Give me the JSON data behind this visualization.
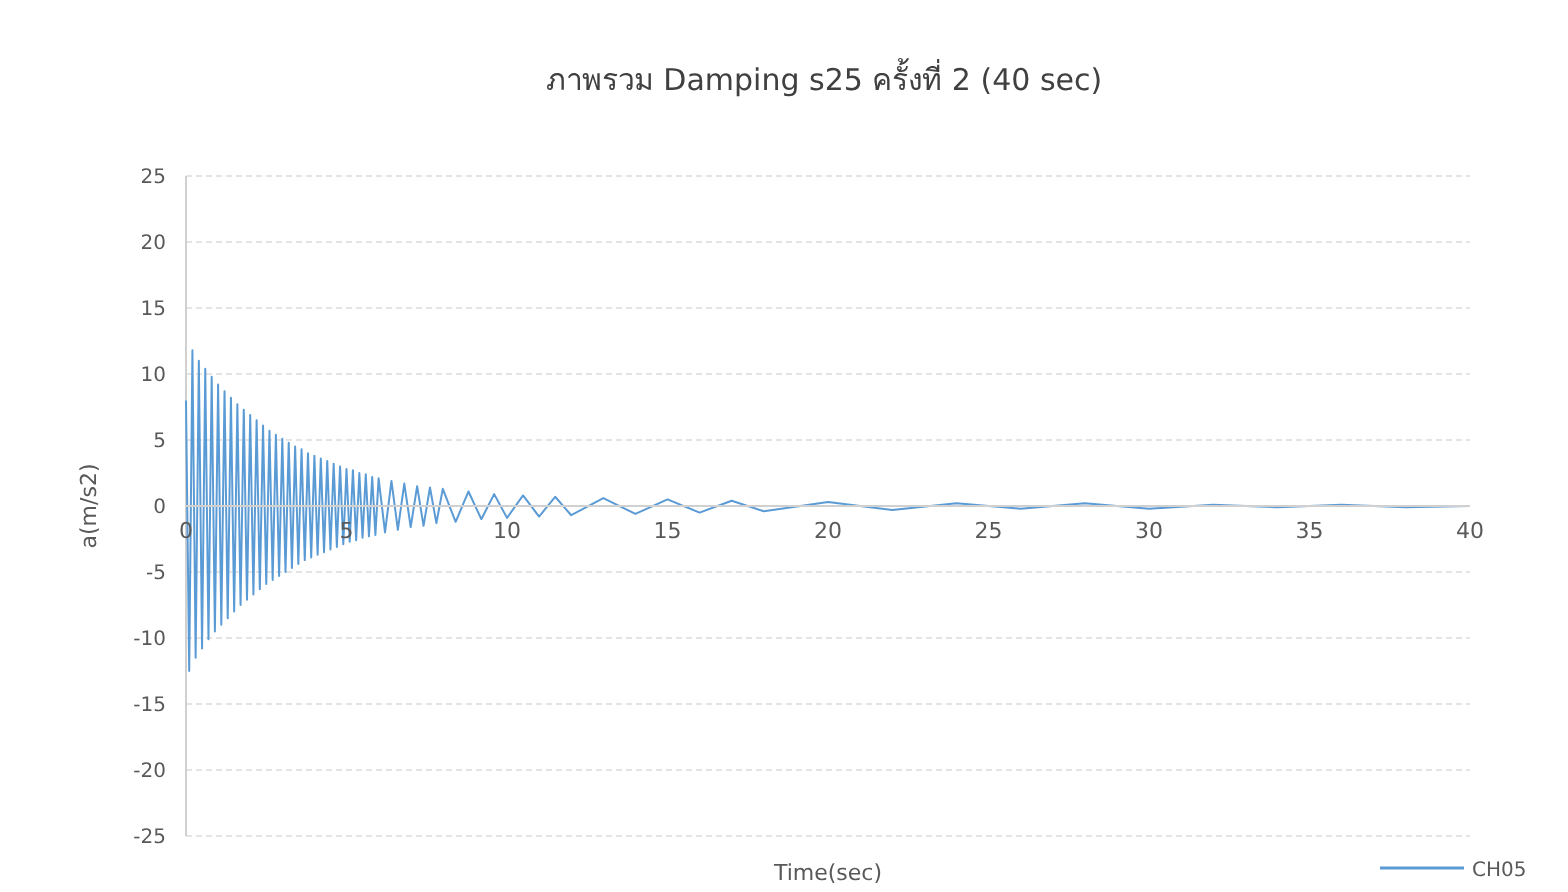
{
  "chart_data": {
    "type": "line",
    "title": "ภาพรวม Damping s25 ครั้งที่ 2 (40 sec)",
    "xlabel": "Time(sec)",
    "ylabel": "a(m/s2)",
    "xlim": [
      0,
      40
    ],
    "xticks": [
      0,
      5,
      10,
      15,
      20,
      25,
      30,
      35,
      40
    ],
    "ylim": [
      -25,
      25
    ],
    "yticks": [
      -25,
      -20,
      -15,
      -10,
      -5,
      0,
      5,
      10,
      15,
      20,
      25
    ],
    "grid": "y",
    "legend": "bottom right",
    "marker": "none",
    "line_style": "solid",
    "series": [
      {
        "name": "CH05",
        "color": "#5b9bd5",
        "x": [
          0,
          0.1,
          0.2,
          0.3,
          0.4,
          0.5,
          0.6,
          0.7,
          0.8,
          0.9,
          1.0,
          1.1,
          1.2,
          1.3,
          1.4,
          1.5,
          1.6,
          1.7,
          1.8,
          1.9,
          2.0,
          2.1,
          2.2,
          2.3,
          2.4,
          2.5,
          2.6,
          2.7,
          2.8,
          2.9,
          3.0,
          3.1,
          3.2,
          3.3,
          3.4,
          3.5,
          3.6,
          3.7,
          3.8,
          3.9,
          4.0,
          4.1,
          4.2,
          4.3,
          4.4,
          4.5,
          4.6,
          4.7,
          4.8,
          4.9,
          5.0,
          5.1,
          5.2,
          5.3,
          5.4,
          5.5,
          5.6,
          5.7,
          5.8,
          5.9,
          6.0,
          6.2,
          6.4,
          6.6,
          6.8,
          7.0,
          7.2,
          7.4,
          7.6,
          7.8,
          8.0,
          8.4,
          8.8,
          9.2,
          9.6,
          10,
          10.5,
          11,
          11.5,
          12,
          13,
          14,
          15,
          16,
          17,
          18,
          20,
          22,
          24,
          26,
          28,
          30,
          32,
          34,
          36,
          38,
          40
        ],
        "values": [
          8,
          -12.5,
          11.8,
          -11.5,
          11.0,
          -10.8,
          10.4,
          -10.1,
          9.8,
          -9.5,
          9.2,
          -9.0,
          8.7,
          -8.5,
          8.2,
          -8.0,
          7.7,
          -7.5,
          7.3,
          -7.1,
          6.9,
          -6.7,
          6.5,
          -6.3,
          6.1,
          -5.9,
          5.7,
          -5.6,
          5.4,
          -5.3,
          5.1,
          -5.0,
          4.8,
          -4.7,
          4.5,
          -4.4,
          4.3,
          -4.1,
          4.0,
          -3.9,
          3.8,
          -3.7,
          3.6,
          -3.5,
          3.4,
          -3.3,
          3.2,
          -3.1,
          3.0,
          -2.9,
          2.8,
          -2.7,
          2.7,
          -2.6,
          2.5,
          -2.4,
          2.4,
          -2.3,
          2.2,
          -2.2,
          2.1,
          -2.0,
          1.9,
          -1.8,
          1.7,
          -1.6,
          1.5,
          -1.5,
          1.4,
          -1.3,
          1.3,
          -1.2,
          1.1,
          -1.0,
          0.9,
          -0.9,
          0.8,
          -0.8,
          0.7,
          -0.7,
          0.6,
          -0.6,
          0.5,
          -0.5,
          0.4,
          -0.4,
          0.3,
          -0.3,
          0.2,
          -0.2,
          0.2,
          -0.2,
          0.1,
          -0.1,
          0.1,
          -0.1,
          0
        ]
      }
    ]
  }
}
